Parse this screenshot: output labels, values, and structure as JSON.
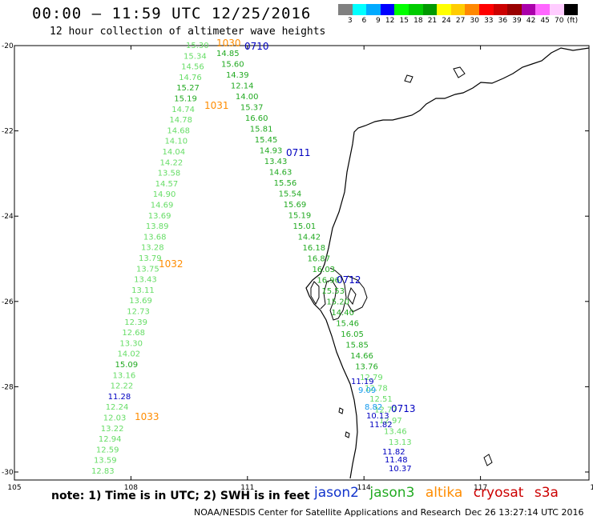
{
  "header": {
    "title": "00:00 – 11:59 UTC 12/25/2016",
    "subtitle": "12 hour collection of altimeter wave heights"
  },
  "color_scale": {
    "colors": [
      "#808080",
      "#00ffff",
      "#00aaff",
      "#0000ff",
      "#00ff00",
      "#00cc00",
      "#009900",
      "#ffff00",
      "#ffcc00",
      "#ff8800",
      "#ff0000",
      "#cc0000",
      "#990000",
      "#aa00aa",
      "#ff66ff",
      "#ffccff",
      "#000000"
    ],
    "labels": [
      "3",
      "6",
      "9",
      "12",
      "15",
      "18",
      "21",
      "24",
      "27",
      "30",
      "33",
      "36",
      "39",
      "42",
      "45",
      "70",
      "(ft)"
    ]
  },
  "axes": {
    "lon_labels": [
      "105",
      "108",
      "111",
      "114",
      "117",
      "120"
    ],
    "lat_labels": [
      "-20",
      "-22",
      "-24",
      "-26",
      "-28",
      "-30"
    ]
  },
  "tracks": {
    "jason3_west": [
      "15.30",
      "15.34",
      "14.56",
      "14.76",
      "15.27",
      "15.19",
      "14.74",
      "14.78",
      "14.68",
      "14.10",
      "14.04",
      "14.22",
      "13.58",
      "14.57",
      "14.90",
      "14.69",
      "13.69",
      "13.89",
      "13.68",
      "13.28",
      "13.79",
      "13.75",
      "13.43",
      "13.11",
      "13.69",
      "12.73",
      "12.39",
      "12.68",
      "13.30",
      "14.02",
      "15.09",
      "13.16",
      "12.22",
      "11.28",
      "12.24",
      "12.03",
      "13.22",
      "12.94",
      "12.59",
      "13.59",
      "12.83"
    ],
    "jason3_east": [
      "14.85",
      "15.60",
      "14.39",
      "12.14",
      "14.00",
      "15.37",
      "16.60",
      "15.81",
      "15.45",
      "14.93",
      "13.43",
      "14.63",
      "15.56",
      "15.54",
      "15.69",
      "15.19",
      "15.01",
      "14.42",
      "16.18",
      "16.87",
      "16.03",
      "16.96",
      "15.53",
      "15.20",
      "14.40",
      "15.46",
      "16.05",
      "15.85",
      "14.66",
      "13.76",
      "12.79",
      "12.78",
      "12.51",
      "12.77",
      "12.97",
      "13.46",
      "13.13"
    ],
    "jason2_east": [
      "11.19",
      "9.09",
      "8.82",
      "10.13",
      "11.82",
      "11.82",
      "11.48",
      "10.37"
    ],
    "altika_passes": [
      "1030",
      "1031",
      "1032",
      "1033"
    ],
    "jason2_passes": [
      "0710",
      "0711",
      "0712",
      "0713"
    ]
  },
  "track_colors": {
    "jason2": "#0000c0",
    "jason3": "#22aa22",
    "jason3_light": "#66dd66",
    "altika": "#ff8c00",
    "cryosat": "#cc0000",
    "s3a": "#cc0000",
    "sky": "#1199ee"
  },
  "footer": {
    "note": "note: 1) Time is in UTC; 2) SWH is in feet",
    "sats": [
      "jason2",
      "jason3",
      "altika",
      "cryosat",
      "s3a"
    ],
    "credit": "NOAA/NESDIS Center for Satellite Applications and Research",
    "created": "Dec 26 13:27:14 UTC 2016"
  }
}
